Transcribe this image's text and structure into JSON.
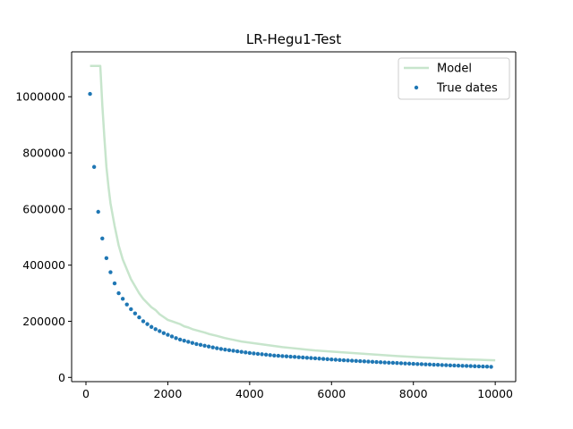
{
  "chart_data": {
    "type": "scatter",
    "title": "LR-Hegu1-Test",
    "xlabel": "",
    "ylabel": "",
    "xlim": [
      -350,
      10500
    ],
    "ylim": [
      -15000,
      1160000
    ],
    "xticks": [
      0,
      2000,
      4000,
      6000,
      8000,
      10000
    ],
    "xtick_labels": [
      "0",
      "2000",
      "4000",
      "6000",
      "8000",
      "10000"
    ],
    "yticks": [
      0,
      200000,
      400000,
      600000,
      800000,
      1000000
    ],
    "ytick_labels": [
      "0",
      "200000",
      "400000",
      "600000",
      "800000",
      "1000000"
    ],
    "grid": false,
    "legend": "top-right",
    "colors": {
      "model": "#c7e5cc",
      "true_dates": "#1f77b4"
    },
    "series": [
      {
        "name": "Model",
        "kind": "line",
        "x": [
          100,
          200,
          300,
          350,
          400,
          450,
          500,
          550,
          600,
          700,
          800,
          900,
          1000,
          1100,
          1200,
          1300,
          1400,
          1500,
          1600,
          1700,
          1800,
          1900,
          2000,
          2100,
          2200,
          2300,
          2400,
          2500,
          2600,
          2700,
          2800,
          2900,
          3000,
          3200,
          3400,
          3600,
          3800,
          4000,
          4200,
          4400,
          4600,
          4800,
          5000,
          5200,
          5400,
          5600,
          5800,
          6000,
          6200,
          6400,
          6600,
          6800,
          7000,
          7200,
          7400,
          7600,
          7800,
          8000,
          8200,
          8400,
          8600,
          8800,
          9000,
          9200,
          9400,
          9600,
          9800,
          10000
        ],
        "y": [
          1110000,
          1110000,
          1110000,
          1110000,
          970000,
          855000,
          750000,
          680000,
          620000,
          540000,
          470000,
          420000,
          385000,
          350000,
          325000,
          300000,
          280000,
          265000,
          250000,
          240000,
          225000,
          215000,
          205000,
          200000,
          195000,
          190000,
          182000,
          178000,
          172000,
          168000,
          164000,
          160000,
          155000,
          148000,
          140000,
          134000,
          128000,
          124000,
          120000,
          116000,
          112000,
          108000,
          105000,
          102000,
          99000,
          96000,
          94000,
          92000,
          90000,
          88000,
          86000,
          84000,
          82000,
          80000,
          78000,
          76000,
          74500,
          73000,
          71500,
          70000,
          68500,
          67000,
          66000,
          65000,
          64000,
          63000,
          62000,
          61000
        ]
      },
      {
        "name": "True dates",
        "kind": "scatter",
        "x": [
          100,
          200,
          300,
          400,
          500,
          600,
          700,
          800,
          900,
          1000,
          1100,
          1200,
          1300,
          1400,
          1500,
          1600,
          1700,
          1800,
          1900,
          2000,
          2100,
          2200,
          2300,
          2400,
          2500,
          2600,
          2700,
          2800,
          2900,
          3000,
          3100,
          3200,
          3300,
          3400,
          3500,
          3600,
          3700,
          3800,
          3900,
          4000,
          4100,
          4200,
          4300,
          4400,
          4500,
          4600,
          4700,
          4800,
          4900,
          5000,
          5100,
          5200,
          5300,
          5400,
          5500,
          5600,
          5700,
          5800,
          5900,
          6000,
          6100,
          6200,
          6300,
          6400,
          6500,
          6600,
          6700,
          6800,
          6900,
          7000,
          7100,
          7200,
          7300,
          7400,
          7500,
          7600,
          7700,
          7800,
          7900,
          8000,
          8100,
          8200,
          8300,
          8400,
          8500,
          8600,
          8700,
          8800,
          8900,
          9000,
          9100,
          9200,
          9300,
          9400,
          9500,
          9600,
          9700,
          9800,
          9900
        ],
        "y": [
          1010000,
          750000,
          590000,
          495000,
          425000,
          375000,
          335000,
          300000,
          280000,
          260000,
          243000,
          228000,
          214000,
          200000,
          190000,
          180000,
          172000,
          165000,
          158000,
          152000,
          146000,
          140000,
          135000,
          131000,
          127000,
          123000,
          119000,
          116000,
          113000,
          110000,
          107000,
          104000,
          101500,
          99000,
          97000,
          95000,
          93000,
          91000,
          89000,
          87000,
          85500,
          84000,
          82500,
          81000,
          79500,
          78000,
          77000,
          76000,
          75000,
          74000,
          73000,
          72000,
          71000,
          70000,
          69000,
          68000,
          67000,
          66000,
          65000,
          64000,
          63000,
          62000,
          61200,
          60400,
          59600,
          58800,
          58000,
          57200,
          56400,
          55600,
          54800,
          54000,
          53300,
          52600,
          51900,
          51200,
          50500,
          49800,
          49100,
          48400,
          47800,
          47200,
          46600,
          46000,
          45400,
          44800,
          44200,
          43600,
          43000,
          42400,
          41900,
          41400,
          40900,
          40400,
          39900,
          39400,
          38900,
          38400,
          37900
        ]
      }
    ]
  }
}
